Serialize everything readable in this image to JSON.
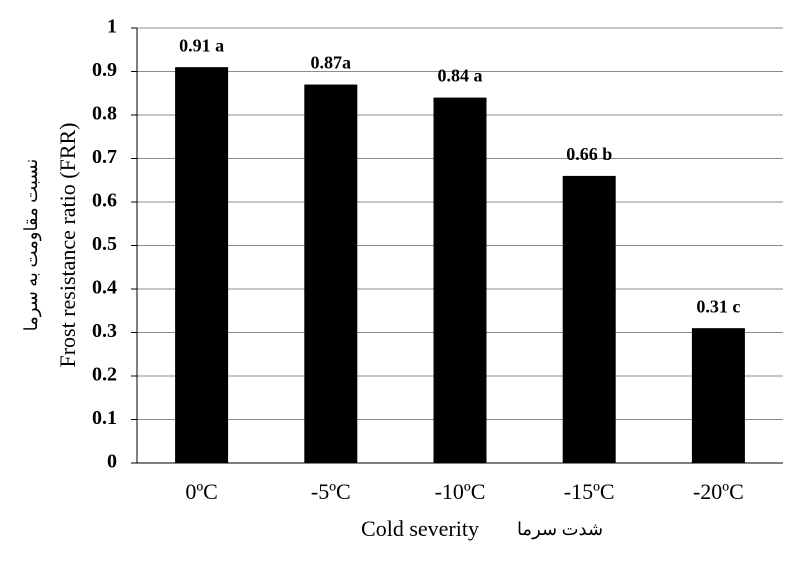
{
  "chart_data": {
    "type": "bar",
    "categories": [
      "0ºC",
      "-5ºC",
      "-10ºC",
      "-15ºC",
      "-20ºC"
    ],
    "values": [
      0.91,
      0.87,
      0.84,
      0.66,
      0.31
    ],
    "data_labels": [
      "0.91 a",
      "0.87a",
      "0.84 a",
      "0.66 b",
      "0.31 c"
    ],
    "ylabel": "Frost resistance ratio (FRR)",
    "ylabel_fa": "نسبت مقاومت به سرما",
    "xlabel": "Cold severity",
    "xlabel_fa": "شدت سرما",
    "ylim": [
      0,
      1
    ],
    "yticks": [
      "0",
      "0.1",
      "0.2",
      "0.3",
      "0.4",
      "0.5",
      "0.6",
      "0.7",
      "0.8",
      "0.9",
      "1"
    ],
    "grid": true,
    "bar_color": "#000000",
    "grid_color": "#8c8c8c"
  }
}
